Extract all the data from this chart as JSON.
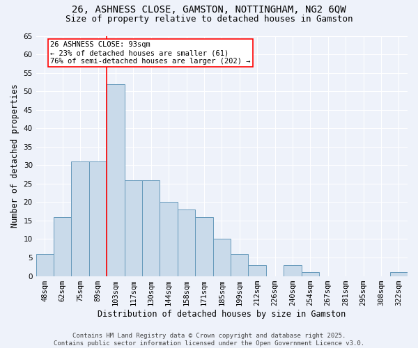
{
  "title": "26, ASHNESS CLOSE, GAMSTON, NOTTINGHAM, NG2 6QW",
  "subtitle": "Size of property relative to detached houses in Gamston",
  "xlabel": "Distribution of detached houses by size in Gamston",
  "ylabel": "Number of detached properties",
  "bar_color": "#c9daea",
  "bar_edge_color": "#6699bb",
  "background_color": "#eef2fa",
  "grid_color": "#ffffff",
  "categories": [
    "48sqm",
    "62sqm",
    "75sqm",
    "89sqm",
    "103sqm",
    "117sqm",
    "130sqm",
    "144sqm",
    "158sqm",
    "171sqm",
    "185sqm",
    "199sqm",
    "212sqm",
    "226sqm",
    "240sqm",
    "254sqm",
    "267sqm",
    "281sqm",
    "295sqm",
    "308sqm",
    "322sqm"
  ],
  "values": [
    6,
    16,
    31,
    31,
    52,
    26,
    26,
    20,
    18,
    16,
    10,
    6,
    3,
    0,
    3,
    1,
    0,
    0,
    0,
    0,
    1
  ],
  "ylim": [
    0,
    65
  ],
  "yticks": [
    0,
    5,
    10,
    15,
    20,
    25,
    30,
    35,
    40,
    45,
    50,
    55,
    60,
    65
  ],
  "vline_x_index": 3.5,
  "annotation_text": "26 ASHNESS CLOSE: 93sqm\n← 23% of detached houses are smaller (61)\n76% of semi-detached houses are larger (202) →",
  "annotation_box_color": "white",
  "annotation_box_edge_color": "red",
  "vline_color": "red",
  "footer_text": "Contains HM Land Registry data © Crown copyright and database right 2025.\nContains public sector information licensed under the Open Government Licence v3.0.",
  "title_fontsize": 10,
  "subtitle_fontsize": 9,
  "xlabel_fontsize": 8.5,
  "ylabel_fontsize": 8.5,
  "tick_fontsize": 7.5,
  "annotation_fontsize": 7.5,
  "footer_fontsize": 6.5
}
